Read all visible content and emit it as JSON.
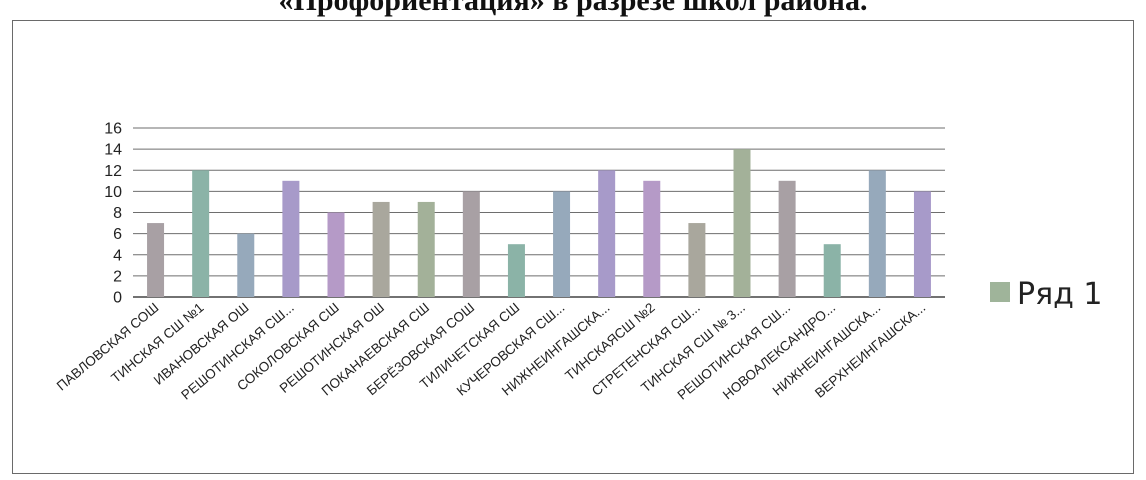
{
  "title": "«Профориентация» в разрезе школ района.",
  "chart_data": {
    "type": "bar",
    "categories": [
      "ПАВЛОВСКАЯ СОШ",
      "ТИНСКАЯ СШ №1",
      "ИВАНОВСКАЯ ОШ",
      "РЕШОТИНСКАЯ СШ...",
      "СОКОЛОВСКАЯ СШ",
      "РЕШОТИНСКАЯ ОШ",
      "ПОКАНАЕВСКАЯ СШ",
      "БЕРЁЗОВСКАЯ СОШ",
      "ТИЛИЧЕТСКАЯ СШ",
      "КУЧЕРОВСКАЯ СШ...",
      "НИЖНЕИНГАШСКА...",
      "ТИНСКАЯСШ №2",
      "СТРЕТЕНСКАЯ СШ...",
      "ТИНСКАЯ СШ № 3...",
      "РЕШОТИНСКАЯ СШ...",
      "НОВОАЛЕКСАНДРО...",
      "НИЖНЕИНГАШСКА...",
      "ВЕРХНЕИНГАШСКА..."
    ],
    "series": [
      {
        "name": "Ряд 1",
        "values": [
          7,
          12,
          6,
          11,
          8,
          9,
          9,
          10,
          5,
          10,
          12,
          11,
          7,
          14,
          11,
          5,
          12,
          10
        ]
      }
    ],
    "ylim": [
      0,
      16
    ],
    "yticks": [
      0,
      2,
      4,
      6,
      8,
      10,
      12,
      14,
      16
    ],
    "grid": true,
    "legend": "right",
    "colors": [
      "#a8a0a4",
      "#8bb3a7",
      "#96a9bb",
      "#a79ac9",
      "#b59ac7",
      "#a9a79d",
      "#a3b199"
    ]
  }
}
